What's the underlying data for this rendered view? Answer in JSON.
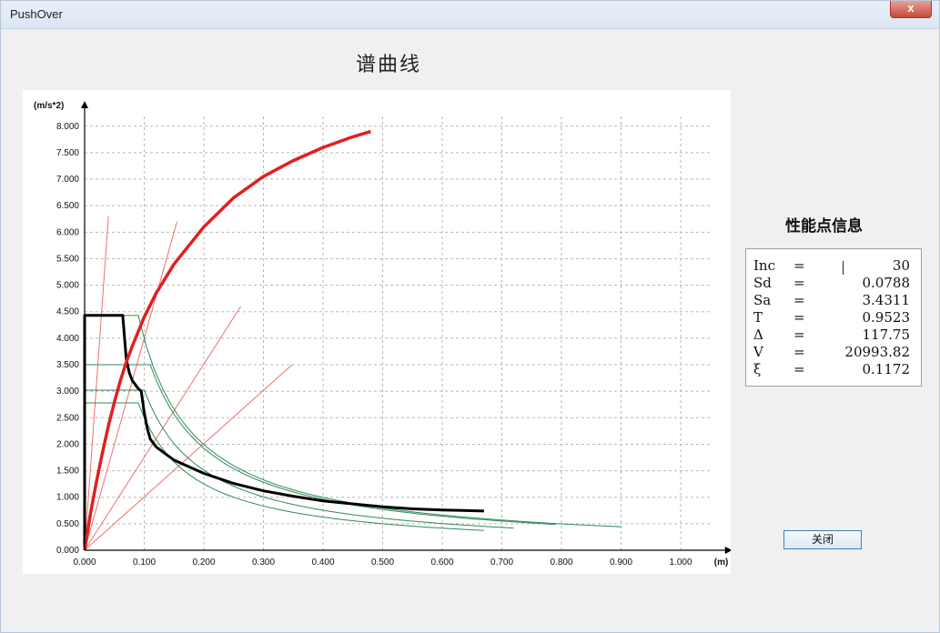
{
  "window": {
    "title": "PushOver",
    "close_glyph": "x"
  },
  "chart": {
    "title": "谱曲线"
  },
  "info_panel": {
    "title": "性能点信息",
    "rows": [
      {
        "key": "Inc",
        "eq": "=",
        "value": "30"
      },
      {
        "key": "Sd",
        "eq": "=",
        "value": "0.0788"
      },
      {
        "key": "Sa",
        "eq": "=",
        "value": "3.4311"
      },
      {
        "key": "T",
        "eq": "=",
        "value": "0.9523"
      },
      {
        "key": "Δ",
        "eq": "=",
        "value": "117.75"
      },
      {
        "key": "V",
        "eq": "=",
        "value": "20993.82"
      },
      {
        "key": "ξ",
        "eq": "=",
        "value": "0.1172"
      }
    ]
  },
  "buttons": {
    "close_label": "关闭"
  },
  "chart_data": {
    "type": "line",
    "xlabel": "(m)",
    "ylabel": "(m/s*2)",
    "xlim": [
      0,
      1.05
    ],
    "ylim": [
      0,
      8.2
    ],
    "grid": true,
    "x_ticks": [
      "0.000",
      "0.100",
      "0.200",
      "0.300",
      "0.400",
      "0.500",
      "0.600",
      "0.700",
      "0.800",
      "0.900",
      "1.000"
    ],
    "y_ticks": [
      "0.000",
      "0.500",
      "1.000",
      "1.500",
      "2.000",
      "2.500",
      "3.000",
      "3.500",
      "4.000",
      "4.500",
      "5.000",
      "5.500",
      "6.000",
      "6.500",
      "7.000",
      "7.500",
      "8.000"
    ],
    "colors": {
      "capacity": "#e02020",
      "demand": "#000000",
      "spectra": "#2e8b57",
      "periods": "#f07070",
      "grid": "#b8b8b8"
    },
    "capacity_curve": {
      "x": [
        0.0,
        0.01,
        0.02,
        0.03,
        0.04,
        0.05,
        0.06,
        0.07,
        0.08,
        0.1,
        0.12,
        0.15,
        0.2,
        0.25,
        0.3,
        0.35,
        0.4,
        0.45,
        0.48
      ],
      "y": [
        0.0,
        0.7,
        1.3,
        1.85,
        2.35,
        2.8,
        3.2,
        3.55,
        3.85,
        4.4,
        4.85,
        5.4,
        6.1,
        6.65,
        7.05,
        7.35,
        7.6,
        7.8,
        7.9
      ]
    },
    "demand_curve": {
      "x": [
        0.0,
        0.0,
        0.064,
        0.067,
        0.07,
        0.075,
        0.08,
        0.09,
        0.095,
        0.1,
        0.105,
        0.11,
        0.12,
        0.15,
        0.2,
        0.25,
        0.3,
        0.35,
        0.4,
        0.5,
        0.55,
        0.6,
        0.67
      ],
      "y": [
        0.0,
        4.43,
        4.43,
        4.0,
        3.6,
        3.35,
        3.2,
        3.05,
        3.0,
        2.6,
        2.3,
        2.1,
        1.95,
        1.7,
        1.45,
        1.26,
        1.12,
        1.02,
        0.93,
        0.82,
        0.78,
        0.76,
        0.74
      ]
    },
    "elastic_spectra": [
      {
        "plateau": 4.43,
        "x_start": 0.09,
        "x_end": 0.9
      },
      {
        "plateau": 3.5,
        "x_start": 0.11,
        "x_end": 0.79
      },
      {
        "plateau": 3.02,
        "x_start": 0.1,
        "x_end": 0.72
      },
      {
        "plateau": 2.78,
        "x_start": 0.09,
        "x_end": 0.67
      }
    ],
    "period_lines": [
      {
        "x_end": 0.04,
        "y_end": 6.3
      },
      {
        "x_end": 0.155,
        "y_end": 6.2
      },
      {
        "x_end": 0.262,
        "y_end": 4.6
      },
      {
        "x_end": 0.348,
        "y_end": 3.5
      }
    ]
  }
}
